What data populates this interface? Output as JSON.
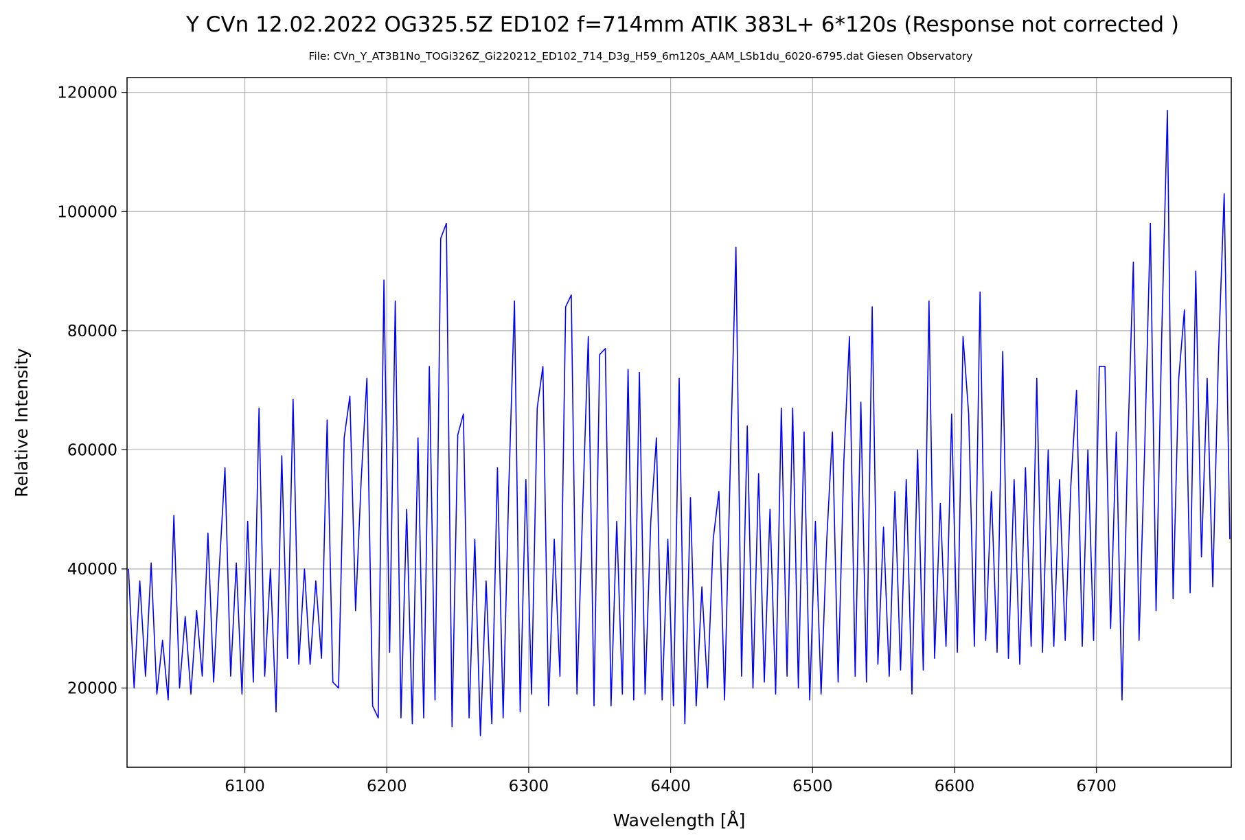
{
  "chart_data": {
    "type": "line",
    "title": "Y CVn  12.02.2022   OG325.5Z ED102 f=714mm  ATIK 383L+ 6*120s  (Response not corrected )",
    "subtitle": "File: CVn_Y_AT3B1No_TOGi326Z_Gi220212_ED102_714_D3g_H59_6m120s_AAM_LSb1du_6020-6795.dat    Giesen Observatory",
    "x_label": "Wavelength [Å]",
    "y_label": "Relative Intensity",
    "x": [
      6018,
      6022,
      6026,
      6030,
      6034,
      6038,
      6042,
      6046,
      6050,
      6054,
      6058,
      6062,
      6066,
      6070,
      6074,
      6078,
      6082,
      6086,
      6090,
      6094,
      6098,
      6102,
      6106,
      6110,
      6114,
      6118,
      6122,
      6126,
      6130,
      6134,
      6138,
      6142,
      6146,
      6150,
      6154,
      6158,
      6162,
      6166,
      6170,
      6174,
      6178,
      6182,
      6186,
      6190,
      6194,
      6198,
      6202,
      6206,
      6210,
      6214,
      6218,
      6222,
      6226,
      6230,
      6234,
      6238,
      6242,
      6246,
      6250,
      6254,
      6258,
      6262,
      6266,
      6270,
      6274,
      6278,
      6282,
      6286,
      6290,
      6294,
      6298,
      6302,
      6306,
      6310,
      6314,
      6318,
      6322,
      6326,
      6330,
      6334,
      6338,
      6342,
      6346,
      6350,
      6354,
      6358,
      6362,
      6366,
      6370,
      6374,
      6378,
      6382,
      6386,
      6390,
      6394,
      6398,
      6402,
      6406,
      6410,
      6414,
      6418,
      6422,
      6426,
      6430,
      6434,
      6438,
      6442,
      6446,
      6450,
      6454,
      6458,
      6462,
      6466,
      6470,
      6474,
      6478,
      6482,
      6486,
      6490,
      6494,
      6498,
      6502,
      6506,
      6510,
      6514,
      6518,
      6522,
      6526,
      6530,
      6534,
      6538,
      6542,
      6546,
      6550,
      6554,
      6558,
      6562,
      6566,
      6570,
      6574,
      6578,
      6582,
      6586,
      6590,
      6594,
      6598,
      6602,
      6606,
      6610,
      6614,
      6618,
      6622,
      6626,
      6630,
      6634,
      6638,
      6642,
      6646,
      6650,
      6654,
      6658,
      6662,
      6666,
      6670,
      6674,
      6678,
      6682,
      6686,
      6690,
      6694,
      6698,
      6702,
      6706,
      6710,
      6714,
      6718,
      6722,
      6726,
      6730,
      6734,
      6738,
      6742,
      6746,
      6750,
      6754,
      6758,
      6762,
      6766,
      6770,
      6774,
      6778,
      6782,
      6786,
      6790,
      6794
    ],
    "series": [
      {
        "name": "spectrum",
        "color": "#0000ff",
        "values": [
          40000,
          20000,
          38000,
          22000,
          41000,
          19000,
          28000,
          18000,
          49000,
          20000,
          32000,
          19000,
          33000,
          22000,
          46000,
          21000,
          40000,
          57000,
          22000,
          41000,
          19000,
          48000,
          21000,
          67000,
          22000,
          40000,
          16000,
          59000,
          25000,
          68500,
          24000,
          40000,
          24000,
          38000,
          25000,
          65000,
          21000,
          20000,
          62000,
          69000,
          33000,
          55000,
          72000,
          17000,
          15000,
          88500,
          26000,
          85000,
          15000,
          50000,
          14000,
          62000,
          15000,
          74000,
          18000,
          95500,
          98000,
          13500,
          62500,
          66000,
          15000,
          45000,
          12000,
          38000,
          14000,
          57000,
          15000,
          54000,
          85000,
          16000,
          55000,
          19000,
          67000,
          74000,
          17000,
          45000,
          22000,
          84000,
          86000,
          19000,
          50000,
          79000,
          17000,
          76000,
          77000,
          17000,
          48000,
          19000,
          73500,
          18000,
          73000,
          19000,
          48000,
          62000,
          18000,
          45000,
          17000,
          72000,
          14000,
          52000,
          17000,
          37000,
          20000,
          45000,
          53000,
          18000,
          57000,
          94000,
          22000,
          64000,
          20000,
          56000,
          21000,
          50000,
          19000,
          67000,
          22000,
          67000,
          20000,
          63000,
          18000,
          48000,
          19000,
          45000,
          63000,
          21000,
          58000,
          79000,
          22000,
          68000,
          21000,
          84000,
          24000,
          47000,
          22000,
          53000,
          23000,
          55000,
          19000,
          60000,
          23000,
          85000,
          25000,
          51000,
          27000,
          66000,
          26000,
          79000,
          66000,
          27000,
          86500,
          28000,
          53000,
          26000,
          76500,
          25000,
          55000,
          24000,
          57000,
          27000,
          72000,
          26000,
          60000,
          27000,
          55000,
          28000,
          54000,
          70000,
          27000,
          60000,
          28000,
          74000,
          74000,
          30000,
          63000,
          18000,
          60000,
          91500,
          28000,
          60000,
          98000,
          33000,
          79000,
          117000,
          35000,
          72000,
          83500,
          36000,
          90000,
          42000,
          72000,
          37000,
          76000,
          103000,
          45000
        ]
      }
    ],
    "xlim": [
      6017,
      6795
    ],
    "ylim": [
      6700,
      122500
    ],
    "xticks": [
      6100,
      6200,
      6300,
      6400,
      6500,
      6600,
      6700
    ],
    "yticks": [
      20000,
      40000,
      60000,
      80000,
      100000,
      120000
    ],
    "grid": true
  }
}
